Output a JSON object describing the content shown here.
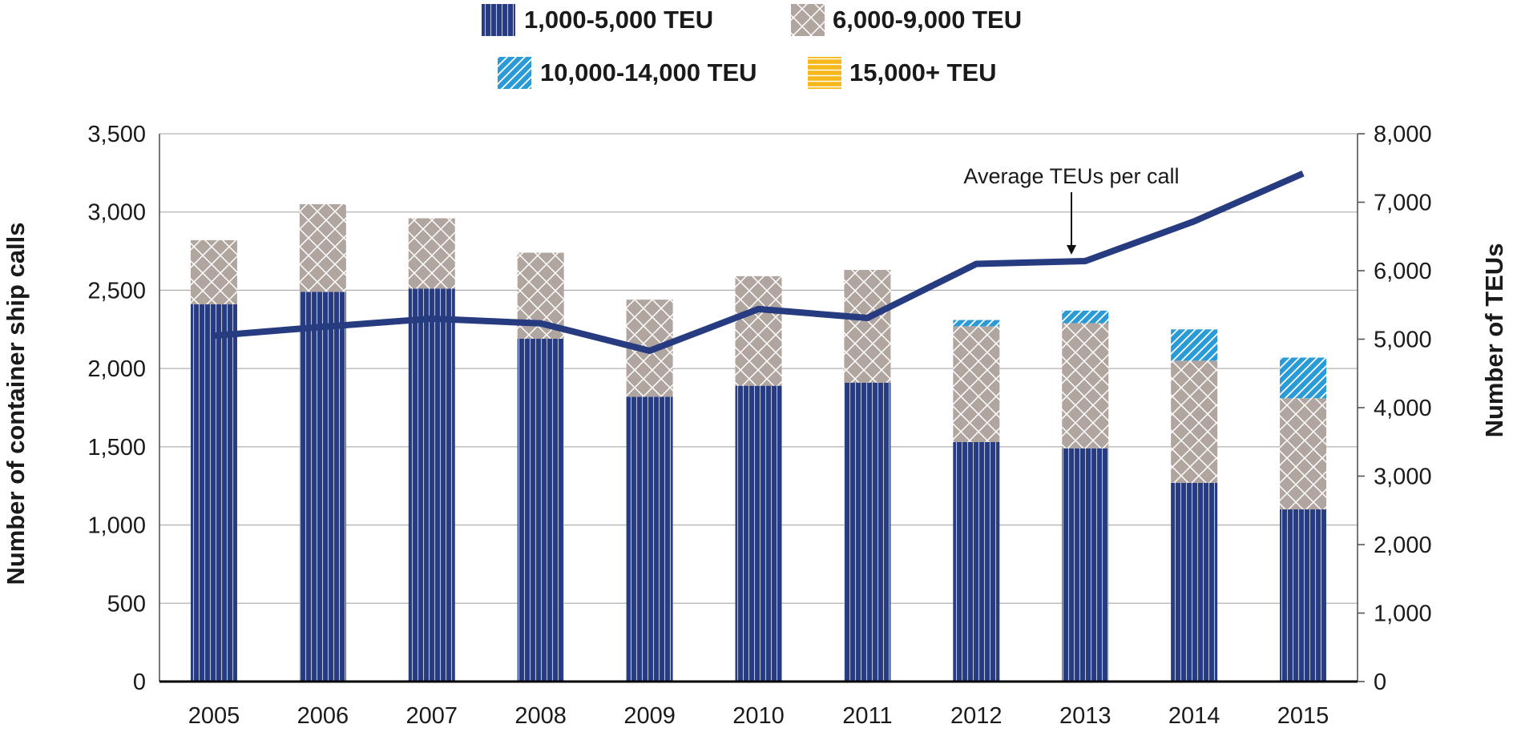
{
  "chart_data": {
    "type": "bar",
    "stacked": true,
    "categories": [
      "2005",
      "2006",
      "2007",
      "2008",
      "2009",
      "2010",
      "2011",
      "2012",
      "2013",
      "2014",
      "2015"
    ],
    "series": [
      {
        "name": "1,000-5,000 TEU",
        "values": [
          2410,
          2490,
          2510,
          2190,
          1820,
          1890,
          1910,
          1530,
          1490,
          1270,
          1100
        ],
        "color": "#263b80",
        "pattern": "vertical-lines"
      },
      {
        "name": "6,000-9,000 TEU",
        "values": [
          410,
          560,
          450,
          550,
          620,
          700,
          720,
          740,
          800,
          780,
          710
        ],
        "color": "#b1a59f",
        "pattern": "crosshatch"
      },
      {
        "name": "10,000-14,000 TEU",
        "values": [
          0,
          0,
          0,
          0,
          0,
          0,
          0,
          40,
          80,
          200,
          260
        ],
        "color": "#2b9bd7",
        "pattern": "diagonal-lines"
      },
      {
        "name": "15,000+ TEU",
        "values": [
          0,
          0,
          0,
          0,
          0,
          0,
          0,
          0,
          0,
          0,
          0
        ],
        "color": "#f6b81c",
        "pattern": "horizontal-lines"
      }
    ],
    "line_series": {
      "name": "Average TEUs per call",
      "axis": "right",
      "values": [
        5050,
        5180,
        5300,
        5230,
        4830,
        5440,
        5310,
        6100,
        6140,
        6720,
        7420
      ],
      "color": "#263b80"
    },
    "ylabel": "Number of container ship calls",
    "ylim": [
      0,
      3500
    ],
    "yticks": [
      "0",
      "500",
      "1,000",
      "1,500",
      "2,000",
      "2,500",
      "3,000",
      "3,500"
    ],
    "y2label": "Number of TEUs",
    "y2lim": [
      0,
      8000
    ],
    "y2ticks": [
      "0",
      "1,000",
      "2,000",
      "3,000",
      "4,000",
      "5,000",
      "6,000",
      "7,000",
      "8,000"
    ],
    "annotation": "Average TEUs per call",
    "grid": true,
    "legend_position": "top-center"
  }
}
